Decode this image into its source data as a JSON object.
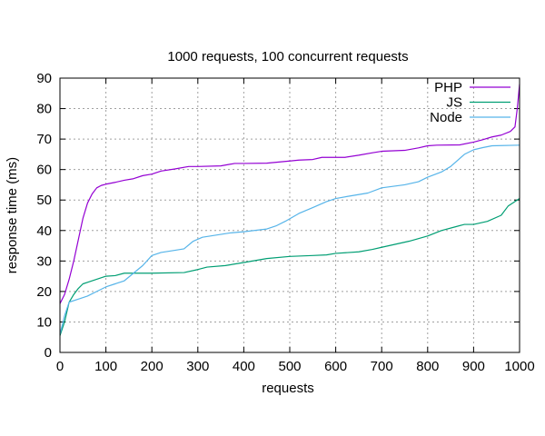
{
  "chart_data": {
    "type": "line",
    "title": "1000 requests, 100 concurrent requests",
    "xlabel": "requests",
    "ylabel": "response time (ms)",
    "xlim": [
      0,
      1000
    ],
    "ylim": [
      0,
      90
    ],
    "x_ticks": [
      0,
      100,
      200,
      300,
      400,
      500,
      600,
      700,
      800,
      900,
      1000
    ],
    "y_ticks": [
      0,
      10,
      20,
      30,
      40,
      50,
      60,
      70,
      80,
      90
    ],
    "grid": true,
    "legend_position": "top-right",
    "series": [
      {
        "name": "PHP",
        "color": "#9400d3",
        "points": [
          [
            0,
            16
          ],
          [
            10,
            19
          ],
          [
            20,
            24
          ],
          [
            30,
            30
          ],
          [
            40,
            37
          ],
          [
            50,
            44
          ],
          [
            60,
            49
          ],
          [
            70,
            52
          ],
          [
            80,
            54
          ],
          [
            90,
            54.8
          ],
          [
            100,
            55.2
          ],
          [
            120,
            55.8
          ],
          [
            140,
            56.5
          ],
          [
            160,
            57
          ],
          [
            180,
            58
          ],
          [
            200,
            58.5
          ],
          [
            220,
            59.5
          ],
          [
            250,
            60.2
          ],
          [
            280,
            61
          ],
          [
            300,
            61
          ],
          [
            350,
            61.2
          ],
          [
            380,
            62
          ],
          [
            400,
            62
          ],
          [
            450,
            62.1
          ],
          [
            500,
            62.8
          ],
          [
            520,
            63.1
          ],
          [
            550,
            63.3
          ],
          [
            570,
            64
          ],
          [
            620,
            64
          ],
          [
            650,
            64.7
          ],
          [
            680,
            65.5
          ],
          [
            700,
            66
          ],
          [
            750,
            66.3
          ],
          [
            780,
            67.1
          ],
          [
            800,
            67.8
          ],
          [
            820,
            68
          ],
          [
            870,
            68.1
          ],
          [
            900,
            69
          ],
          [
            920,
            69.8
          ],
          [
            940,
            70.7
          ],
          [
            960,
            71.3
          ],
          [
            980,
            72.5
          ],
          [
            990,
            74
          ],
          [
            995,
            80
          ],
          [
            1000,
            88
          ]
        ]
      },
      {
        "name": "JS",
        "color": "#009e73",
        "points": [
          [
            0,
            5.5
          ],
          [
            10,
            10
          ],
          [
            20,
            16.5
          ],
          [
            30,
            19
          ],
          [
            40,
            21
          ],
          [
            50,
            22.5
          ],
          [
            60,
            23
          ],
          [
            80,
            24
          ],
          [
            100,
            25
          ],
          [
            120,
            25.2
          ],
          [
            140,
            26
          ],
          [
            200,
            26
          ],
          [
            270,
            26.2
          ],
          [
            300,
            27.2
          ],
          [
            320,
            28
          ],
          [
            360,
            28.5
          ],
          [
            400,
            29.5
          ],
          [
            450,
            30.8
          ],
          [
            500,
            31.5
          ],
          [
            550,
            31.8
          ],
          [
            580,
            32
          ],
          [
            600,
            32.5
          ],
          [
            650,
            33
          ],
          [
            680,
            33.8
          ],
          [
            700,
            34.5
          ],
          [
            730,
            35.5
          ],
          [
            760,
            36.5
          ],
          [
            800,
            38.2
          ],
          [
            830,
            40
          ],
          [
            860,
            41.2
          ],
          [
            880,
            42
          ],
          [
            900,
            42
          ],
          [
            930,
            43
          ],
          [
            960,
            45
          ],
          [
            975,
            48
          ],
          [
            990,
            49.5
          ],
          [
            1000,
            50.5
          ]
        ]
      },
      {
        "name": "Node",
        "color": "#56b4e9",
        "points": [
          [
            0,
            6
          ],
          [
            10,
            12
          ],
          [
            20,
            16.5
          ],
          [
            40,
            17.5
          ],
          [
            60,
            18.5
          ],
          [
            80,
            20
          ],
          [
            100,
            21.5
          ],
          [
            120,
            22.5
          ],
          [
            140,
            23.5
          ],
          [
            160,
            26
          ],
          [
            180,
            28.5
          ],
          [
            200,
            31.8
          ],
          [
            220,
            32.8
          ],
          [
            250,
            33.5
          ],
          [
            270,
            34
          ],
          [
            290,
            36.5
          ],
          [
            310,
            37.8
          ],
          [
            340,
            38.5
          ],
          [
            370,
            39.2
          ],
          [
            400,
            39.6
          ],
          [
            450,
            40.5
          ],
          [
            470,
            41.5
          ],
          [
            490,
            43
          ],
          [
            520,
            45.6
          ],
          [
            550,
            47.5
          ],
          [
            580,
            49.5
          ],
          [
            600,
            50.5
          ],
          [
            630,
            51.3
          ],
          [
            670,
            52.3
          ],
          [
            700,
            54
          ],
          [
            750,
            55
          ],
          [
            780,
            56
          ],
          [
            800,
            57.5
          ],
          [
            830,
            59.2
          ],
          [
            850,
            61
          ],
          [
            880,
            65
          ],
          [
            900,
            66.5
          ],
          [
            920,
            67.2
          ],
          [
            940,
            67.8
          ],
          [
            1000,
            68
          ]
        ]
      }
    ]
  }
}
